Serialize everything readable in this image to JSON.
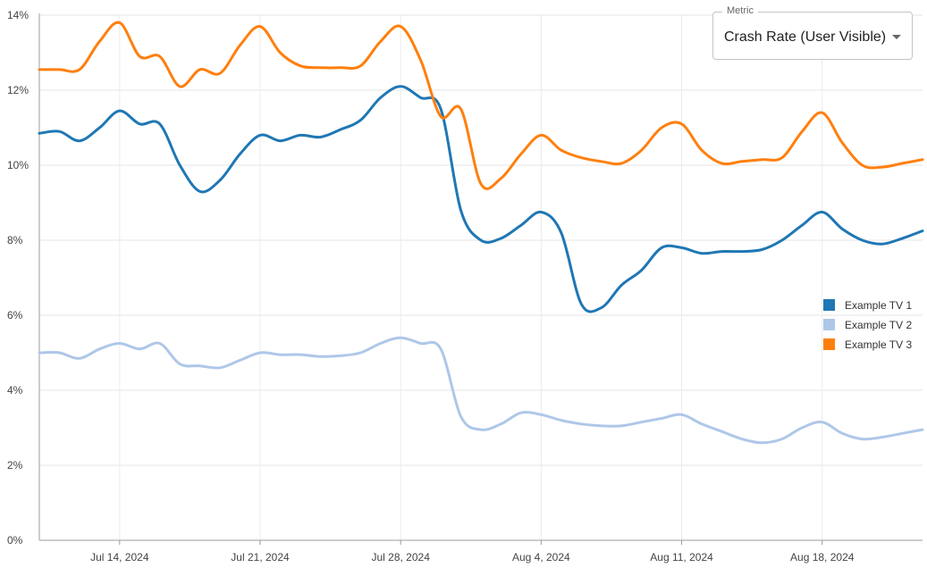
{
  "metric_selector": {
    "label": "Metric",
    "value": "Crash Rate (User Visible)",
    "icon": "chevron-down-icon"
  },
  "chart_data": {
    "type": "line",
    "title": "",
    "xlabel": "",
    "ylabel": "",
    "ylim": [
      0,
      14
    ],
    "xlim": [
      0,
      44
    ],
    "y_ticks": [
      {
        "value": 0,
        "label": "0%"
      },
      {
        "value": 2,
        "label": "2%"
      },
      {
        "value": 4,
        "label": "4%"
      },
      {
        "value": 6,
        "label": "6%"
      },
      {
        "value": 8,
        "label": "8%"
      },
      {
        "value": 10,
        "label": "10%"
      },
      {
        "value": 12,
        "label": "12%"
      },
      {
        "value": 14,
        "label": "14%"
      }
    ],
    "x_ticks": [
      {
        "value": 4,
        "label": "Jul 14, 2024"
      },
      {
        "value": 11,
        "label": "Jul 21, 2024"
      },
      {
        "value": 18,
        "label": "Jul 28, 2024"
      },
      {
        "value": 25,
        "label": "Aug 4, 2024"
      },
      {
        "value": 32,
        "label": "Aug 11, 2024"
      },
      {
        "value": 39,
        "label": "Aug 18, 2024"
      }
    ],
    "grid": true,
    "legend_position": "right",
    "x": [
      0,
      1,
      2,
      3,
      4,
      5,
      6,
      7,
      8,
      9,
      10,
      11,
      12,
      13,
      14,
      15,
      16,
      17,
      18,
      19,
      20,
      21,
      22,
      23,
      24,
      25,
      26,
      27,
      28,
      29,
      30,
      31,
      32,
      33,
      34,
      35,
      36,
      37,
      38,
      39,
      40,
      41,
      42,
      43,
      44
    ],
    "series": [
      {
        "name": "Example TV 1",
        "color": "#1f77b4",
        "values": [
          10.85,
          10.9,
          10.65,
          11.0,
          11.45,
          11.1,
          11.1,
          10.0,
          9.3,
          9.6,
          10.3,
          10.8,
          10.65,
          10.8,
          10.75,
          10.95,
          11.2,
          11.8,
          12.1,
          11.8,
          11.5,
          8.8,
          8.0,
          8.05,
          8.4,
          8.75,
          8.2,
          6.3,
          6.2,
          6.8,
          7.2,
          7.8,
          7.8,
          7.65,
          7.7,
          7.7,
          7.75,
          8.0,
          8.4,
          8.75,
          8.3,
          8.0,
          7.9,
          8.05,
          8.25
        ]
      },
      {
        "name": "Example TV 2",
        "color": "#aec7e8",
        "values": [
          5.0,
          5.0,
          4.85,
          5.1,
          5.25,
          5.1,
          5.25,
          4.7,
          4.65,
          4.6,
          4.8,
          5.0,
          4.95,
          4.95,
          4.9,
          4.92,
          5.0,
          5.25,
          5.4,
          5.25,
          5.1,
          3.3,
          2.95,
          3.1,
          3.4,
          3.35,
          3.2,
          3.1,
          3.05,
          3.05,
          3.15,
          3.25,
          3.35,
          3.1,
          2.9,
          2.7,
          2.6,
          2.7,
          3.0,
          3.15,
          2.85,
          2.7,
          2.75,
          2.85,
          2.95
        ]
      },
      {
        "name": "Example TV 3",
        "color": "#ff7f0e",
        "values": [
          12.55,
          12.55,
          12.55,
          13.3,
          13.8,
          12.9,
          12.9,
          12.1,
          12.55,
          12.45,
          13.2,
          13.7,
          13.0,
          12.65,
          12.6,
          12.6,
          12.65,
          13.3,
          13.7,
          12.8,
          11.3,
          11.5,
          9.5,
          9.65,
          10.3,
          10.8,
          10.4,
          10.2,
          10.1,
          10.05,
          10.4,
          11.0,
          11.1,
          10.4,
          10.05,
          10.1,
          10.15,
          10.2,
          10.9,
          11.4,
          10.6,
          10.0,
          9.95,
          10.05,
          10.15
        ]
      }
    ]
  }
}
